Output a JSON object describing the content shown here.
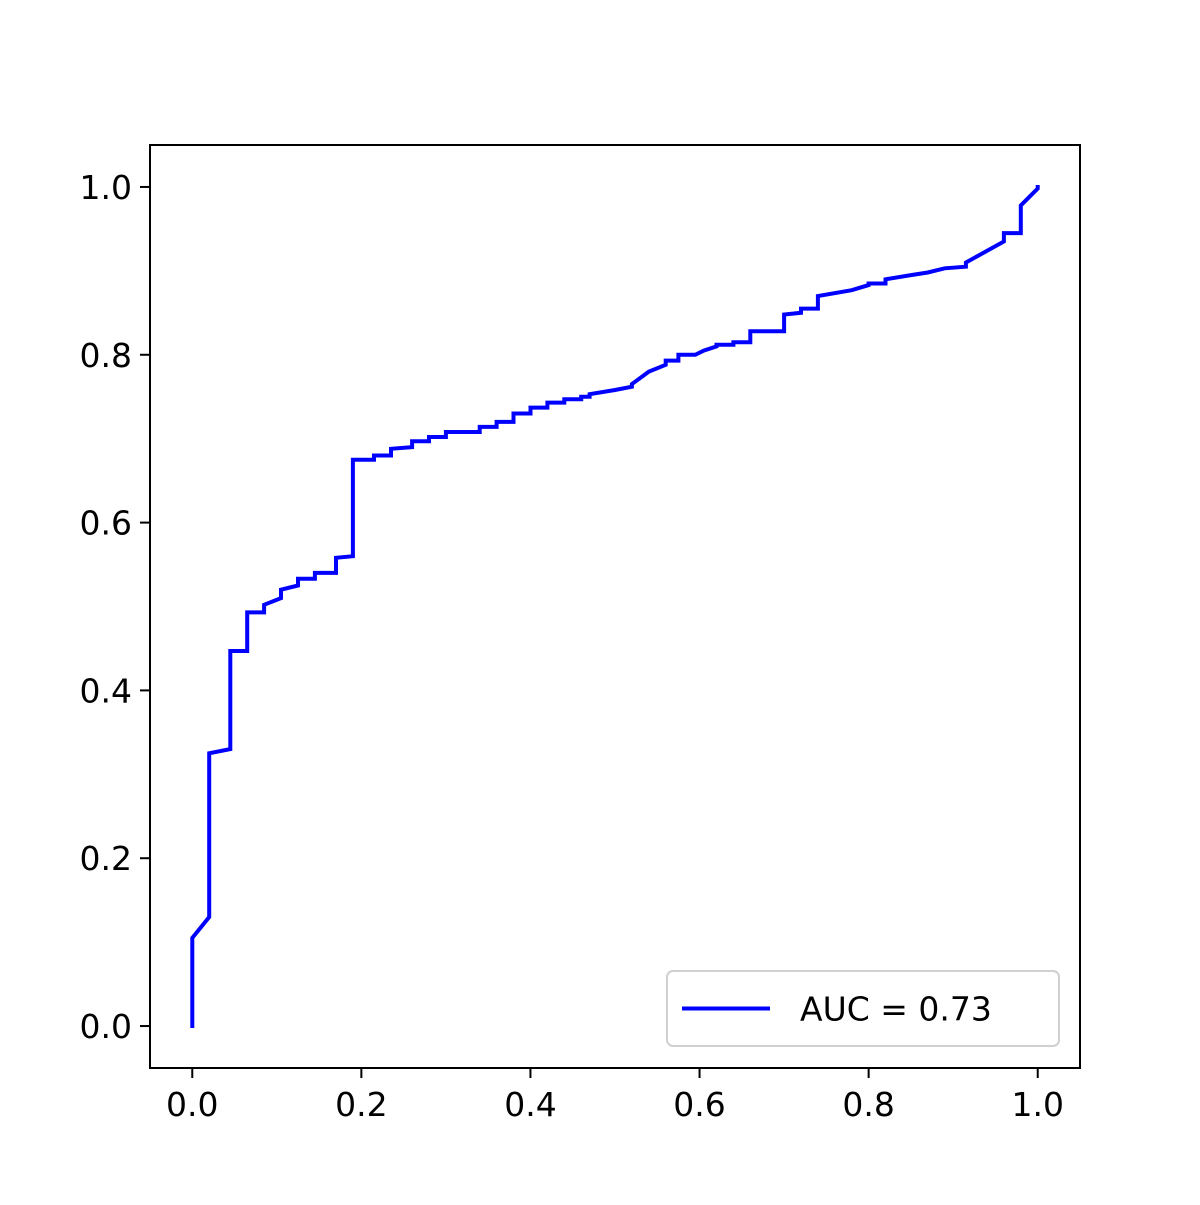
{
  "chart_data": {
    "type": "line",
    "title": "",
    "xlabel": "",
    "ylabel": "",
    "xlim": [
      -0.05,
      1.05
    ],
    "ylim": [
      -0.05,
      1.05
    ],
    "grid": false,
    "xticks": [
      0.0,
      0.2,
      0.4,
      0.6,
      0.8,
      1.0
    ],
    "yticks": [
      0.0,
      0.2,
      0.4,
      0.6,
      0.8,
      1.0
    ],
    "xtick_labels": [
      "0.0",
      "0.2",
      "0.4",
      "0.6",
      "0.8",
      "1.0"
    ],
    "ytick_labels": [
      "0.0",
      "0.2",
      "0.4",
      "0.6",
      "0.8",
      "1.0"
    ],
    "legend_position": "lower-right",
    "series": [
      {
        "name": "AUC = 0.73",
        "color": "#0000ff",
        "x": [
          0.0,
          0.0,
          0.02,
          0.02,
          0.045,
          0.045,
          0.065,
          0.065,
          0.085,
          0.085,
          0.105,
          0.105,
          0.125,
          0.125,
          0.145,
          0.145,
          0.17,
          0.17,
          0.19,
          0.19,
          0.215,
          0.215,
          0.235,
          0.235,
          0.26,
          0.26,
          0.28,
          0.28,
          0.3,
          0.3,
          0.34,
          0.34,
          0.36,
          0.36,
          0.38,
          0.38,
          0.4,
          0.4,
          0.42,
          0.42,
          0.44,
          0.44,
          0.46,
          0.46,
          0.47,
          0.47,
          0.5,
          0.52,
          0.52,
          0.54,
          0.56,
          0.56,
          0.575,
          0.575,
          0.595,
          0.605,
          0.62,
          0.62,
          0.64,
          0.64,
          0.66,
          0.66,
          0.7,
          0.7,
          0.72,
          0.72,
          0.74,
          0.74,
          0.78,
          0.8,
          0.8,
          0.82,
          0.82,
          0.85,
          0.85,
          0.87,
          0.87,
          0.89,
          0.89,
          0.915,
          0.915,
          0.96,
          0.96,
          0.98,
          0.98,
          1.0,
          1.0
        ],
        "y": [
          0.0,
          0.105,
          0.13,
          0.325,
          0.33,
          0.447,
          0.447,
          0.493,
          0.493,
          0.502,
          0.51,
          0.52,
          0.525,
          0.533,
          0.533,
          0.54,
          0.54,
          0.558,
          0.56,
          0.675,
          0.675,
          0.68,
          0.68,
          0.688,
          0.69,
          0.697,
          0.697,
          0.702,
          0.702,
          0.708,
          0.708,
          0.714,
          0.714,
          0.72,
          0.72,
          0.73,
          0.73,
          0.737,
          0.737,
          0.743,
          0.743,
          0.747,
          0.747,
          0.75,
          0.75,
          0.753,
          0.758,
          0.762,
          0.765,
          0.78,
          0.788,
          0.793,
          0.793,
          0.8,
          0.8,
          0.805,
          0.81,
          0.812,
          0.812,
          0.815,
          0.815,
          0.828,
          0.828,
          0.848,
          0.85,
          0.855,
          0.855,
          0.87,
          0.877,
          0.883,
          0.885,
          0.885,
          0.89,
          0.895,
          0.895,
          0.898,
          0.898,
          0.903,
          0.903,
          0.905,
          0.91,
          0.935,
          0.945,
          0.945,
          0.978,
          0.998,
          1.0
        ]
      }
    ]
  }
}
